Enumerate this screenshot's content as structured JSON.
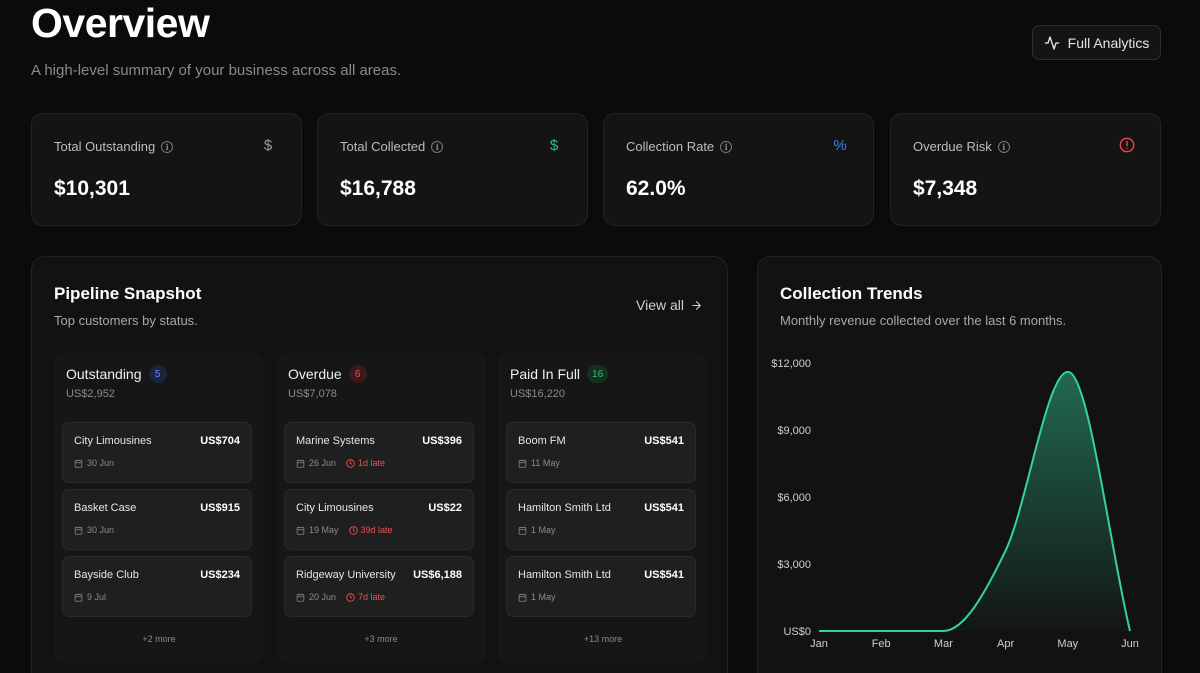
{
  "header": {
    "title": "Overview",
    "subtitle": "A high-level summary of your business across all areas.",
    "analytics_button": "Full Analytics"
  },
  "stats": [
    {
      "label": "Total Outstanding",
      "value": "$10,301",
      "icon": "dollar-icon",
      "icon_color": "#9a9a9a"
    },
    {
      "label": "Total Collected",
      "value": "$16,788",
      "icon": "dollar-icon",
      "icon_color": "#2fbf7f"
    },
    {
      "label": "Collection Rate",
      "value": "62.0%",
      "icon": "percent-icon",
      "icon_color": "#3b82f6"
    },
    {
      "label": "Overdue Risk",
      "value": "$7,348",
      "icon": "alert-circle-icon",
      "icon_color": "#ef4444"
    }
  ],
  "pipeline": {
    "title": "Pipeline Snapshot",
    "subtitle": "Top customers by status.",
    "view_all": "View all",
    "columns": [
      {
        "name": "Outstanding",
        "count": "5",
        "total": "US$2,952",
        "badge_bg": "#1c2540",
        "badge_color": "#6b8cff",
        "items": [
          {
            "name": "City Limousines",
            "amount": "US$704",
            "date": "30 Jun",
            "late": ""
          },
          {
            "name": "Basket Case",
            "amount": "US$915",
            "date": "30 Jun",
            "late": ""
          },
          {
            "name": "Bayside Club",
            "amount": "US$234",
            "date": "9 Jul",
            "late": ""
          }
        ],
        "more": "+2 more"
      },
      {
        "name": "Overdue",
        "count": "6",
        "total": "US$7,078",
        "badge_bg": "#3a1a1a",
        "badge_color": "#ef4f4f",
        "items": [
          {
            "name": "Marine Systems",
            "amount": "US$396",
            "date": "26 Jun",
            "late": "1d late"
          },
          {
            "name": "City Limousines",
            "amount": "US$22",
            "date": "19 May",
            "late": "39d late"
          },
          {
            "name": "Ridgeway University",
            "amount": "US$6,188",
            "date": "20 Jun",
            "late": "7d late"
          }
        ],
        "more": "+3 more"
      },
      {
        "name": "Paid In Full",
        "count": "16",
        "total": "US$16,220",
        "badge_bg": "#15301f",
        "badge_color": "#2fbf7f",
        "items": [
          {
            "name": "Boom FM",
            "amount": "US$541",
            "date": "11 May",
            "late": ""
          },
          {
            "name": "Hamilton Smith Ltd",
            "amount": "US$541",
            "date": "1 May",
            "late": ""
          },
          {
            "name": "Hamilton Smith Ltd",
            "amount": "US$541",
            "date": "1 May",
            "late": ""
          }
        ],
        "more": "+13 more"
      }
    ]
  },
  "trends": {
    "title": "Collection Trends",
    "subtitle": "Monthly revenue collected over the last 6 months."
  },
  "chart_data": {
    "type": "area",
    "title": "Collection Trends",
    "x": [
      "Jan",
      "Feb",
      "Mar",
      "Apr",
      "May",
      "Jun"
    ],
    "series": [
      {
        "values": [
          0,
          0,
          0,
          3600,
          11600,
          0
        ]
      }
    ],
    "ylim": [
      0,
      12000
    ],
    "yticks": [
      0,
      3000,
      6000,
      9000,
      12000
    ],
    "ytick_labels": [
      "US$0",
      "$3,000",
      "$6,000",
      "$9,000",
      "$12,000"
    ],
    "grid": false,
    "line_color": "#34d399"
  }
}
